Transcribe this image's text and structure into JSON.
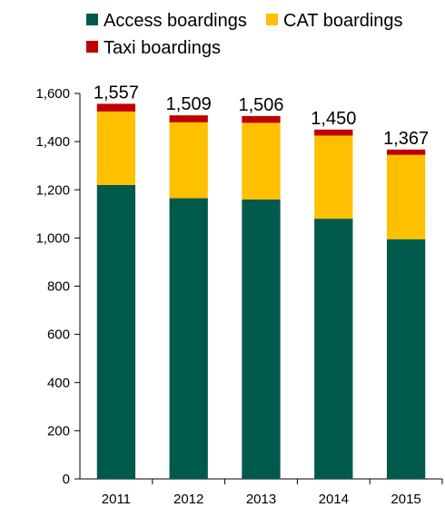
{
  "chart_data": {
    "type": "bar",
    "stacked": true,
    "categories": [
      "2011",
      "2012",
      "2013",
      "2014",
      "2015"
    ],
    "series": [
      {
        "name": "Access boardings",
        "color": "#005a4b",
        "values": [
          1220,
          1165,
          1160,
          1080,
          995
        ]
      },
      {
        "name": "CAT boardings",
        "color": "#ffc000",
        "values": [
          305,
          315,
          318,
          345,
          350
        ]
      },
      {
        "name": "Taxi boardings",
        "color": "#c00000",
        "values": [
          32,
          29,
          28,
          25,
          22
        ]
      }
    ],
    "totals": [
      "1,557",
      "1,509",
      "1,506",
      "1,450",
      "1,367"
    ],
    "y_ticks": [
      "0",
      "200",
      "400",
      "600",
      "800",
      "1,000",
      "1,200",
      "1,400",
      "1,600"
    ],
    "ylim": [
      0,
      1600
    ],
    "grid": false,
    "legend_position": "top"
  }
}
